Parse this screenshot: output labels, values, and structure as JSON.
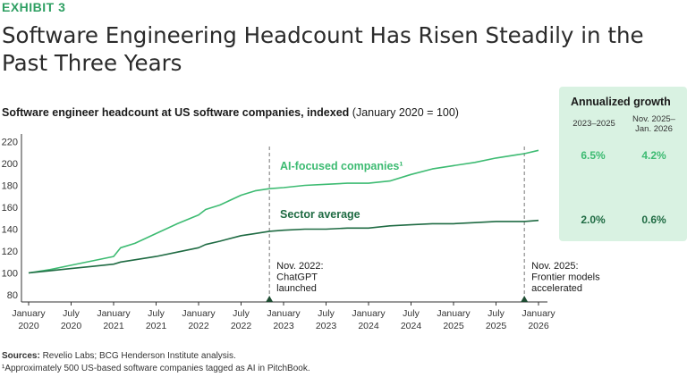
{
  "exhibit_label": "EXHIBIT 3",
  "title": "Software Engineering Headcount Has Risen Steadily in the Past Three Years",
  "subtitle_bold": "Software engineer headcount at US software companies, indexed",
  "subtitle_light": "(January 2020 = 100)",
  "colors": {
    "ai": "#3dbb72",
    "sector": "#1f6b43",
    "accent": "#2e9f62",
    "box": "#d9f2e2"
  },
  "growth_box": {
    "title": "Annualized growth",
    "col1_header": "2023–2025",
    "col2_header": "Nov. 2025–\nJan. 2026",
    "ai_values": [
      "6.5%",
      "4.2%"
    ],
    "sector_values": [
      "2.0%",
      "0.6%"
    ]
  },
  "chart_data": {
    "type": "line",
    "title": "Software engineer headcount at US software companies, indexed (January 2020 = 100)",
    "xlabel": "",
    "ylabel": "",
    "ylim": [
      80,
      225
    ],
    "yticks": [
      80,
      100,
      120,
      140,
      160,
      180,
      200,
      220
    ],
    "x_tick_labels": [
      [
        "January",
        "2020"
      ],
      [
        "July",
        "2020"
      ],
      [
        "January",
        "2021"
      ],
      [
        "July",
        "2021"
      ],
      [
        "January",
        "2022"
      ],
      [
        "July",
        "2022"
      ],
      [
        "January",
        "2023"
      ],
      [
        "July",
        "2023"
      ],
      [
        "January",
        "2024"
      ],
      [
        "July",
        "2024"
      ],
      [
        "January",
        "2025"
      ],
      [
        "July",
        "2025"
      ],
      [
        "January",
        "2026"
      ]
    ],
    "x": [
      "2020-01",
      "2020-04",
      "2020-07",
      "2020-10",
      "2021-01",
      "2021-02",
      "2021-04",
      "2021-07",
      "2021-10",
      "2022-01",
      "2022-02",
      "2022-04",
      "2022-07",
      "2022-09",
      "2022-11",
      "2023-01",
      "2023-04",
      "2023-07",
      "2023-10",
      "2024-01",
      "2024-04",
      "2024-07",
      "2024-10",
      "2025-01",
      "2025-04",
      "2025-07",
      "2025-10",
      "2025-11",
      "2026-01"
    ],
    "series": [
      {
        "name": "AI-focused companies¹",
        "values": [
          100,
          103,
          107,
          111,
          115,
          123,
          127,
          136,
          145,
          153,
          158,
          162,
          171,
          175,
          177,
          178,
          180,
          181,
          182,
          182,
          184,
          190,
          195,
          198,
          201,
          205,
          208,
          209,
          212
        ]
      },
      {
        "name": "Sector average",
        "values": [
          100,
          102,
          104,
          106,
          108,
          110,
          112,
          115,
          119,
          123,
          126,
          129,
          134,
          136,
          138,
          139,
          140,
          140,
          141,
          141,
          143,
          144,
          145,
          145,
          146,
          147,
          147,
          147,
          148
        ]
      }
    ],
    "annotations": [
      {
        "x": "2022-11",
        "lines": [
          "Nov. 2022:",
          "ChatGPT",
          "launched"
        ]
      },
      {
        "x": "2025-11",
        "lines": [
          "Nov. 2025:",
          "Frontier models",
          "accelerated"
        ]
      }
    ],
    "legend": "inline labels"
  },
  "sources": {
    "label": "Sources:",
    "text": "Revelio Labs; BCG Henderson Institute analysis.",
    "footnote": "¹Approximately 500 US-based software companies tagged as AI in PitchBook."
  }
}
